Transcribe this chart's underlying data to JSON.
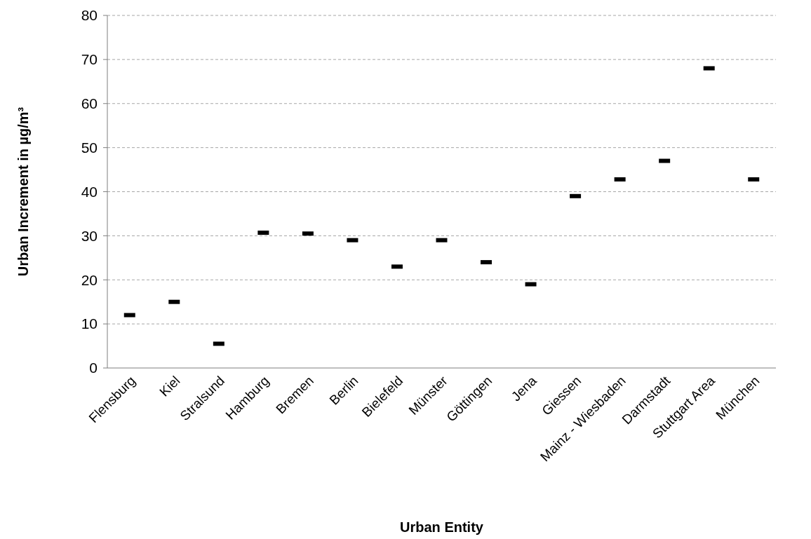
{
  "chart_data": {
    "type": "scatter",
    "xlabel": "Urban Entity",
    "ylabel": "Urban Increment in µg/m³",
    "categories": [
      "Flensburg",
      "Kiel",
      "Stralsund",
      "Hamburg",
      "Bremen",
      "Berlin",
      "Bielefeld",
      "Münster",
      "Göttingen",
      "Jena",
      "Giessen",
      "Mainz - Wiesbaden",
      "Darmstadt",
      "Stuttgart Area",
      "München"
    ],
    "series": [
      {
        "color": "#000000",
        "values": [
          12,
          15,
          5.5,
          30.7,
          30.5,
          29,
          23,
          29,
          24,
          19,
          39,
          42.8,
          47,
          68,
          42.8
        ]
      }
    ],
    "ylim": [
      0,
      80
    ],
    "yticks": [
      0,
      10,
      20,
      30,
      40,
      50,
      60,
      70,
      80
    ],
    "grid": "y"
  }
}
